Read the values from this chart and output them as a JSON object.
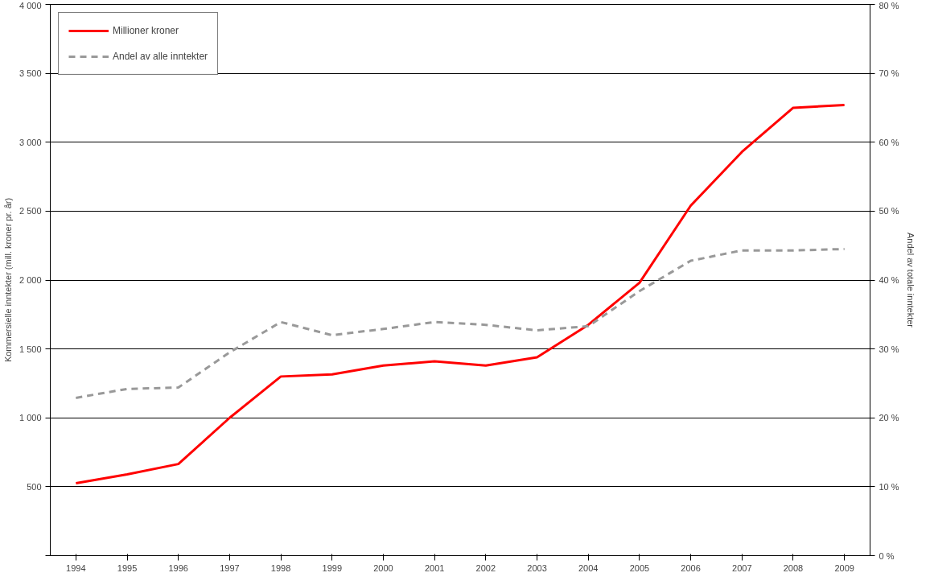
{
  "chart_data": {
    "type": "line",
    "ylabel": "Kommersielle inntekter (mill. kroner pr. år)",
    "y2label": "Andel av totale inntekter",
    "categories": [
      "1994",
      "1995",
      "1996",
      "1997",
      "1998",
      "1999",
      "2000",
      "2001",
      "2002",
      "2003",
      "2004",
      "2005",
      "2006",
      "2007",
      "2008",
      "2009"
    ],
    "series": [
      {
        "name": "Millioner kroner",
        "color": "#ff0000",
        "line_style": "solid",
        "values": [
          525,
          590,
          665,
          1000,
          1300,
          1315,
          1380,
          1410,
          1380,
          1440,
          1675,
          1980,
          2540,
          2930,
          3250,
          3270
        ]
      },
      {
        "name": "Andel av alle inntekter",
        "color": "#999999",
        "line_style": "dashed",
        "axis": "y2",
        "values": [
          22.9,
          24.2,
          24.4,
          29.5,
          33.9,
          32.0,
          32.9,
          33.9,
          33.5,
          32.7,
          33.3,
          38.4,
          42.8,
          44.3,
          44.3,
          44.5
        ]
      }
    ],
    "ylim": [
      0,
      4000
    ],
    "yticks": [
      {
        "value": 0,
        "label": null
      },
      500,
      {
        "value": 1000,
        "label": "1 000"
      },
      {
        "value": 1500,
        "label": "1 500"
      },
      {
        "value": 2000,
        "label": "2 000"
      },
      {
        "value": 2500,
        "label": "2 500"
      },
      {
        "value": 3000,
        "label": "3 000"
      },
      {
        "value": 3500,
        "label": "3 500"
      },
      {
        "value": 4000,
        "label": "4 000"
      }
    ],
    "y2lim": [
      0,
      80
    ],
    "y2ticks": [
      {
        "value": 0,
        "label": "0 %"
      },
      {
        "value": 10,
        "label": "10 %"
      },
      {
        "value": 20,
        "label": "20 %"
      },
      {
        "value": 30,
        "label": "30 %"
      },
      {
        "value": 40,
        "label": "40 %"
      },
      {
        "value": 50,
        "label": "50 %"
      },
      {
        "value": 60,
        "label": "60 %"
      },
      {
        "value": 70,
        "label": "70 %"
      },
      {
        "value": 80,
        "label": "80 %"
      }
    ],
    "grid": "y",
    "legend": "top left",
    "marker": "none"
  }
}
